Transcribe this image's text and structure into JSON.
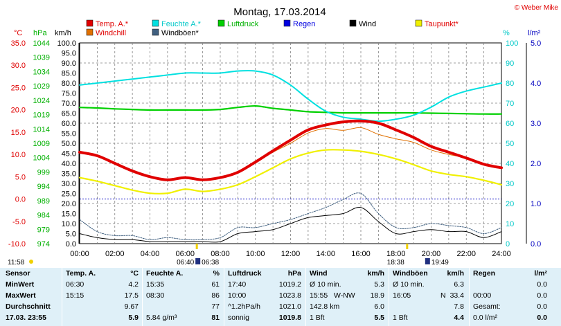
{
  "title": "Montag, 17.03.2014",
  "copyright": "© Weber Mike",
  "colors": {
    "temp": "#e00000",
    "humidity": "#00e0e0",
    "pressure": "#00d000",
    "rain": "#0000e0",
    "wind": "#000000",
    "dewpoint": "#f0f000",
    "windchill": "#e07000",
    "gust": "#406080",
    "grid": "#808080",
    "zero_line": "#0000c0"
  },
  "legend": [
    {
      "label": "Temp. A.*",
      "color": "#e00000",
      "text_color": "#e00000"
    },
    {
      "label": "Feuchte A.*",
      "color": "#00e0e0",
      "text_color": "#00c8c8"
    },
    {
      "label": "Luftdruck",
      "color": "#00d000",
      "text_color": "#00b000"
    },
    {
      "label": "Regen",
      "color": "#0000e0",
      "text_color": "#0000e0"
    },
    {
      "label": "Wind",
      "color": "#000000",
      "text_color": "#000000"
    },
    {
      "label": "Taupunkt*",
      "color": "#f0f000",
      "text_color": "#e00000"
    },
    {
      "label": "Windchill",
      "color": "#e07000",
      "text_color": "#e00000"
    },
    {
      "label": "Windböen*",
      "color": "#406080",
      "text_color": "#000000"
    }
  ],
  "axis_units": {
    "temp": "°C",
    "pressure": "hPa",
    "wind": "km/h",
    "humidity": "%",
    "rain": "l/m²"
  },
  "axes": {
    "temp_ticks": [
      "35.0",
      "30.0",
      "25.0",
      "20.0",
      "15.0",
      "10.0",
      "5.0",
      "0.0",
      "-5.0",
      "-10.0"
    ],
    "pressure_ticks": [
      "1044",
      "1039",
      "1034",
      "1029",
      "1024",
      "1019",
      "1014",
      "1009",
      "1004",
      "999",
      "994",
      "989",
      "984",
      "979",
      "974"
    ],
    "wind_ticks": [
      "100.0",
      "95.0",
      "90.0",
      "85.0",
      "80.0",
      "75.0",
      "70.0",
      "65.0",
      "60.0",
      "55.0",
      "50.0",
      "45.0",
      "40.0",
      "35.0",
      "30.0",
      "25.0",
      "20.0",
      "15.0",
      "10.0",
      "5.0",
      "0.0"
    ],
    "humidity_ticks": [
      "100",
      "90",
      "80",
      "70",
      "60",
      "50",
      "40",
      "30",
      "20",
      "10",
      "0"
    ],
    "rain_ticks": [
      "5.0",
      "4.0",
      "3.0",
      "2.0",
      "1.0",
      "0.0"
    ],
    "time_ticks": [
      "00:00",
      "02:00",
      "04:00",
      "06:00",
      "08:00",
      "10:00",
      "12:00",
      "14:00",
      "16:00",
      "18:00",
      "20:00",
      "22:00",
      "24:00"
    ]
  },
  "sun": {
    "sunrise": "06:40",
    "sunrise_alt": "06:38",
    "sunset": "18:38",
    "sunset_alt": "19:49",
    "noon": "11:58"
  },
  "chart_data": {
    "type": "line",
    "title": "Montag, 17.03.2014",
    "x_unit": "hour of day",
    "xlim": [
      0,
      24
    ],
    "ylim_temp": [
      -10,
      35
    ],
    "ylim_wind": [
      0,
      100
    ],
    "ylim_humidity": [
      0,
      100
    ],
    "ylim_pressure": [
      974,
      1044
    ],
    "grid": true,
    "legend_position": "top",
    "x": [
      0,
      1,
      2,
      3,
      4,
      5,
      6,
      7,
      8,
      9,
      10,
      11,
      12,
      13,
      14,
      15,
      16,
      17,
      18,
      19,
      20,
      21,
      22,
      23,
      24
    ],
    "series": [
      {
        "name": "Temp. A.*",
        "axis": "temp",
        "values": [
          10.5,
          9.7,
          8.0,
          6.3,
          5.0,
          4.3,
          4.8,
          4.3,
          4.8,
          6.0,
          8.3,
          10.8,
          13.2,
          15.5,
          16.6,
          17.3,
          17.5,
          17.0,
          15.5,
          13.8,
          11.8,
          10.5,
          9.2,
          7.8,
          7.0
        ]
      },
      {
        "name": "Windchill",
        "axis": "temp",
        "values": [
          10.5,
          9.7,
          8.0,
          6.3,
          5.0,
          4.3,
          4.8,
          4.3,
          4.8,
          6.0,
          8.3,
          10.5,
          12.5,
          14.8,
          15.8,
          15.4,
          16.0,
          14.5,
          13.5,
          12.7,
          11.0,
          10.0,
          9.2,
          7.8,
          7.0
        ]
      },
      {
        "name": "Taupunkt*",
        "axis": "temp",
        "values": [
          4.8,
          4.0,
          3.0,
          2.0,
          1.3,
          1.3,
          2.2,
          1.7,
          2.2,
          3.2,
          5.0,
          7.0,
          9.0,
          10.3,
          11.0,
          11.0,
          10.7,
          10.0,
          9.0,
          7.7,
          6.3,
          5.5,
          5.0,
          4.2,
          3.2
        ]
      },
      {
        "name": "Feuchte A.*",
        "axis": "humidity",
        "values": [
          79,
          80,
          81,
          82,
          83,
          84,
          85,
          85,
          85,
          86,
          86,
          84,
          79,
          72,
          66,
          63,
          62,
          61,
          62,
          64,
          68,
          73,
          76,
          78,
          80
        ]
      },
      {
        "name": "Luftdruck",
        "axis": "pressure",
        "values": [
          1021.5,
          1021.3,
          1021.0,
          1020.8,
          1020.6,
          1020.6,
          1020.6,
          1020.6,
          1020.8,
          1021.5,
          1022.0,
          1021.2,
          1020.6,
          1020.0,
          1019.8,
          1019.6,
          1019.6,
          1019.6,
          1019.6,
          1019.6,
          1019.5,
          1019.4,
          1019.3,
          1019.2,
          1019.2
        ]
      },
      {
        "name": "Wind",
        "axis": "wind",
        "values": [
          5,
          3,
          2,
          2,
          1,
          1,
          1,
          1,
          1,
          5,
          6,
          7,
          10,
          13,
          14,
          15,
          18,
          11,
          5,
          6,
          7,
          6,
          6,
          3,
          6
        ]
      },
      {
        "name": "Windböen*",
        "axis": "wind",
        "values": [
          12,
          6,
          4,
          4,
          2,
          3,
          2,
          2,
          3,
          8,
          8,
          10,
          12,
          15,
          18,
          22,
          25,
          15,
          8,
          8,
          10,
          9,
          8,
          5,
          8
        ]
      }
    ]
  },
  "stats": {
    "sensor": {
      "label": "Sensor",
      "rows": [
        "MinWert",
        "MaxWert",
        "Durchschnitt",
        "17.03. 23:55"
      ]
    },
    "temp": {
      "label": "Temp. A.",
      "unit": "°C",
      "rows": [
        [
          "06:30",
          "4.2"
        ],
        [
          "15:15",
          "17.5"
        ],
        [
          "",
          "9.67"
        ],
        [
          "",
          "5.9"
        ]
      ]
    },
    "humidity": {
      "label": "Feuchte A.",
      "unit": "%",
      "rows": [
        [
          "15:35",
          "61"
        ],
        [
          "08:30",
          "86"
        ],
        [
          "",
          "77"
        ],
        [
          "5.84 g/m³",
          "81"
        ]
      ]
    },
    "pressure": {
      "label": "Luftdruck",
      "unit": "hPa",
      "rows": [
        [
          "17:40",
          "1019.2"
        ],
        [
          "10:00",
          "1023.8"
        ],
        [
          "^1.2hPa/h",
          "1021.0"
        ],
        [
          "sonnig",
          "1019.8"
        ]
      ]
    },
    "wind": {
      "label": "Wind",
      "unit": "km/h",
      "rows": [
        [
          "Ø 10 min.",
          "",
          "5.3"
        ],
        [
          "15:55",
          "W-NW",
          "18.9"
        ],
        [
          "142.8 km",
          "",
          "6.0"
        ],
        [
          "1 Bft",
          "",
          "5.5"
        ]
      ]
    },
    "gust": {
      "label": "Windböen",
      "unit": "km/h",
      "rows": [
        [
          "Ø 10 min.",
          "",
          "6.3"
        ],
        [
          "16:05",
          "N",
          "33.4"
        ],
        [
          "",
          "",
          "7.8"
        ],
        [
          "1 Bft",
          "",
          "4.4"
        ]
      ]
    },
    "rain": {
      "label": "Regen",
      "unit": "l/m²",
      "rows": [
        [
          "",
          "0.0"
        ],
        [
          "00:00",
          "0.0"
        ],
        [
          "Gesamt:",
          "0.0"
        ],
        [
          "0.0 l/m²",
          "0.0"
        ]
      ]
    }
  }
}
